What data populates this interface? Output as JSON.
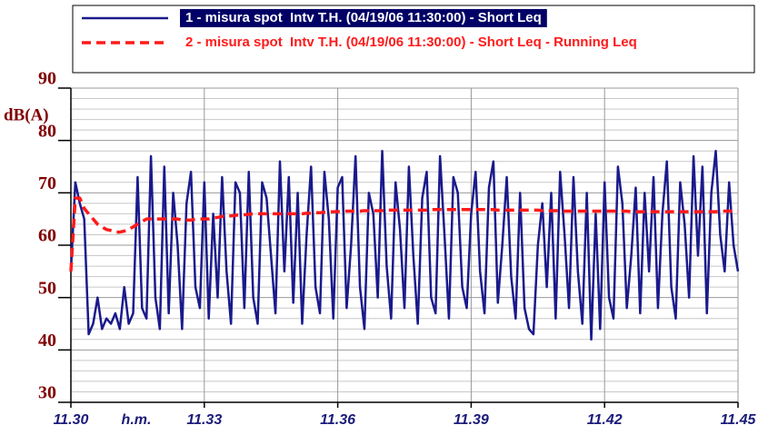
{
  "chart_data": {
    "type": "line",
    "ylabel": "dB(A)",
    "xlabel": "h.m.",
    "x": [
      690.0,
      690.1,
      690.2,
      690.3,
      690.4,
      690.5,
      690.6,
      690.7,
      690.8,
      690.9,
      691.0,
      691.1,
      691.2,
      691.3,
      691.4,
      691.5,
      691.6,
      691.7,
      691.8,
      691.9,
      692.0,
      692.1,
      692.2,
      692.3,
      692.4,
      692.5,
      692.6,
      692.7,
      692.8,
      692.9,
      693.0,
      693.1,
      693.2,
      693.3,
      693.4,
      693.5,
      693.6,
      693.7,
      693.8,
      693.9,
      694.0,
      694.1,
      694.2,
      694.3,
      694.4,
      694.5,
      694.6,
      694.7,
      694.8,
      694.9,
      695.0,
      695.1,
      695.2,
      695.3,
      695.4,
      695.5,
      695.6,
      695.7,
      695.8,
      695.9,
      696.0,
      696.1,
      696.2,
      696.3,
      696.4,
      696.5,
      696.6,
      696.7,
      696.8,
      696.9,
      697.0,
      697.1,
      697.2,
      697.3,
      697.4,
      697.5,
      697.6,
      697.7,
      697.8,
      697.9,
      698.0,
      698.1,
      698.2,
      698.3,
      698.4,
      698.5,
      698.6,
      698.7,
      698.8,
      698.9,
      699.0,
      699.1,
      699.2,
      699.3,
      699.4,
      699.5,
      699.6,
      699.7,
      699.8,
      699.9,
      700.0,
      700.1,
      700.2,
      700.3,
      700.4,
      700.5,
      700.6,
      700.7,
      700.8,
      700.9,
      701.0,
      701.1,
      701.2,
      701.3,
      701.4,
      701.5,
      701.6,
      701.7,
      701.8,
      701.9,
      702.0,
      702.1,
      702.2,
      702.3,
      702.4,
      702.5,
      702.6,
      702.7,
      702.8,
      702.9,
      703.0,
      703.1,
      703.2,
      703.3,
      703.4,
      703.5,
      703.6,
      703.7,
      703.8,
      703.9,
      704.0,
      704.1,
      704.2,
      704.3,
      704.4,
      704.5,
      704.6,
      704.7,
      704.8,
      704.9,
      705.0
    ],
    "series": [
      {
        "name": "1 - misura spot  Intv T.H. (04/19/06 11:30:00) - Short Leq",
        "color": "#1a1a8c",
        "dash": false,
        "values": [
          55,
          72,
          68,
          65,
          43,
          45,
          50,
          44,
          46,
          45,
          47,
          44,
          52,
          45,
          47,
          73,
          48,
          46,
          77,
          50,
          44,
          75,
          47,
          70,
          60,
          44,
          68,
          74,
          52,
          48,
          72,
          46,
          66,
          50,
          73,
          55,
          45,
          72,
          70,
          48,
          74,
          50,
          45,
          72,
          69,
          58,
          47,
          76,
          55,
          73,
          49,
          70,
          45,
          62,
          75,
          52,
          47,
          74,
          65,
          46,
          71,
          73,
          48,
          60,
          77,
          52,
          44,
          70,
          66,
          50,
          78,
          56,
          46,
          72,
          63,
          48,
          75,
          58,
          45,
          69,
          74,
          50,
          47,
          77,
          62,
          46,
          73,
          70,
          52,
          48,
          66,
          74,
          55,
          47,
          71,
          76,
          49,
          60,
          73,
          54,
          46,
          70,
          48,
          44,
          43,
          60,
          68,
          52,
          70,
          46,
          74,
          62,
          48,
          73,
          55,
          45,
          70,
          42,
          66,
          44,
          72,
          50,
          46,
          75,
          68,
          48,
          58,
          71,
          47,
          70,
          55,
          73,
          48,
          66,
          76,
          52,
          46,
          72,
          64,
          50,
          77,
          58,
          75,
          47,
          70,
          78,
          62,
          55,
          72,
          60,
          55
        ]
      },
      {
        "name": "2 - misura spot  Intv T.H. (04/19/06 11:30:00) - Short Leq - Running Leq",
        "color": "#ff1a1a",
        "dash": true,
        "values": [
          55,
          69,
          69,
          67,
          66,
          65,
          64,
          63.5,
          63,
          62.8,
          62.5,
          62.5,
          62.7,
          63,
          63.5,
          64,
          64.5,
          65,
          65,
          65,
          65,
          65,
          65,
          65,
          65,
          64.8,
          64.8,
          64.8,
          65,
          65,
          65,
          65,
          65.2,
          65.3,
          65.5,
          65.5,
          65.6,
          65.7,
          65.8,
          65.8,
          65.9,
          66,
          66,
          66,
          66,
          66,
          66,
          66,
          66,
          66,
          66,
          66,
          66,
          66.1,
          66.1,
          66.2,
          66.2,
          66.3,
          66.3,
          66.4,
          66.4,
          66.5,
          66.5,
          66.5,
          66.5,
          66.5,
          66.6,
          66.6,
          66.6,
          66.6,
          66.6,
          66.7,
          66.7,
          66.7,
          66.7,
          66.7,
          66.7,
          66.7,
          66.7,
          66.7,
          66.7,
          66.8,
          66.8,
          66.8,
          66.8,
          66.8,
          66.8,
          66.8,
          66.8,
          66.8,
          66.8,
          66.8,
          66.8,
          66.8,
          66.8,
          66.8,
          66.7,
          66.7,
          66.7,
          66.7,
          66.7,
          66.7,
          66.7,
          66.7,
          66.7,
          66.7,
          66.6,
          66.6,
          66.6,
          66.6,
          66.6,
          66.5,
          66.5,
          66.5,
          66.5,
          66.5,
          66.5,
          66.5,
          66.5,
          66.5,
          66.5,
          66.5,
          66.5,
          66.5,
          66.5,
          66.5,
          66.4,
          66.4,
          66.4,
          66.4,
          66.4,
          66.4,
          66.4,
          66.4,
          66.4,
          66.4,
          66.4,
          66.4,
          66.4,
          66.4,
          66.4,
          66.4,
          66.4,
          66.4,
          66.4,
          66.4,
          66.5,
          66.5,
          66.5,
          66.5,
          66.5
        ]
      }
    ],
    "xlim": [
      690,
      705
    ],
    "xticks": [
      {
        "value": 690,
        "label": "11.30"
      },
      {
        "value": 693,
        "label": "11.33"
      },
      {
        "value": 696,
        "label": "11.36"
      },
      {
        "value": 699,
        "label": "11.39"
      },
      {
        "value": 702,
        "label": "11.42"
      },
      {
        "value": 705,
        "label": "11.45"
      }
    ],
    "ylim": [
      30,
      90
    ],
    "yticks": [
      30,
      40,
      50,
      60,
      70,
      80,
      90
    ],
    "yminorticks": [
      32,
      34,
      36,
      38,
      42,
      44,
      46,
      48,
      52,
      54,
      56,
      58,
      62,
      64,
      66,
      68,
      72,
      74,
      76,
      78,
      82,
      84,
      86,
      88
    ],
    "grid": true
  }
}
